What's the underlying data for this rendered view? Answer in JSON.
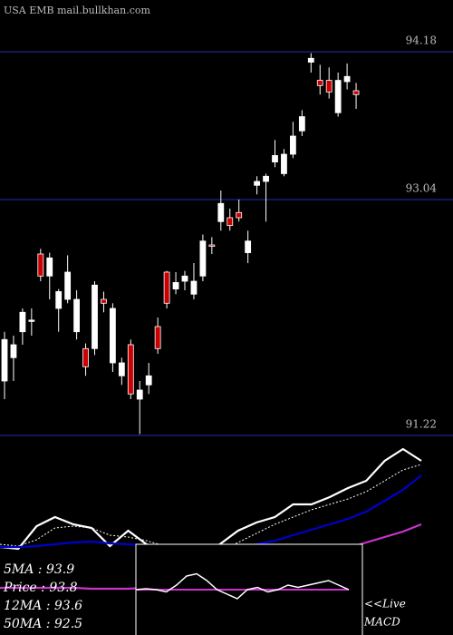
{
  "chart_data": [
    {
      "type": "candlestick",
      "title": "USA EMB mail.bullkhan.com",
      "up_color": "#ffffff",
      "down_color": "#cc0000",
      "grid_color": "#1c1c78",
      "ylim": [
        91.22,
        94.58
      ],
      "yticks": [
        94.18,
        93.04,
        91.22
      ],
      "open": [
        91.64,
        91.82,
        92.02,
        92.1,
        92.62,
        92.45,
        92.2,
        92.27,
        92.02,
        91.89,
        91.89,
        92.27,
        91.78,
        91.68,
        91.92,
        91.5,
        91.61,
        92.06,
        92.48,
        92.35,
        92.41,
        92.31,
        92.45,
        92.69,
        92.87,
        92.9,
        92.94,
        92.63,
        93.15,
        93.18,
        93.33,
        93.24,
        93.39,
        93.57,
        94.1,
        93.96,
        93.96,
        93.71,
        93.95,
        93.88
      ],
      "high": [
        92.02,
        91.99,
        92.2,
        92.2,
        92.66,
        92.63,
        92.35,
        92.61,
        92.34,
        91.93,
        92.41,
        92.33,
        92.24,
        91.82,
        91.96,
        91.64,
        91.78,
        92.13,
        92.49,
        92.48,
        92.49,
        92.55,
        92.77,
        92.75,
        93.11,
        92.97,
        93.04,
        92.8,
        93.22,
        93.24,
        93.5,
        93.43,
        93.64,
        93.73,
        94.17,
        94.08,
        94.06,
        94.02,
        94.09,
        93.94
      ],
      "low": [
        91.5,
        91.64,
        91.92,
        91.99,
        92.41,
        92.27,
        92.02,
        92.24,
        91.96,
        91.68,
        91.84,
        92.17,
        91.71,
        91.61,
        91.5,
        91.23,
        91.54,
        91.85,
        92.2,
        92.31,
        92.34,
        92.27,
        92.41,
        92.62,
        92.8,
        92.8,
        92.87,
        92.55,
        93.08,
        92.87,
        93.29,
        93.22,
        93.36,
        93.53,
        94.02,
        93.85,
        93.82,
        93.68,
        93.89,
        93.74
      ],
      "close": [
        91.96,
        91.92,
        92.17,
        92.11,
        92.45,
        92.59,
        92.33,
        92.48,
        92.27,
        91.75,
        92.38,
        92.24,
        92.2,
        91.78,
        91.54,
        91.57,
        91.68,
        91.89,
        92.24,
        92.4,
        92.45,
        92.41,
        92.72,
        92.68,
        93.01,
        92.84,
        92.9,
        92.72,
        93.18,
        93.22,
        93.38,
        93.39,
        93.53,
        93.68,
        94.13,
        93.92,
        93.87,
        93.96,
        93.99,
        93.85
      ]
    },
    {
      "type": "line",
      "ylim": [
        0,
        220
      ],
      "series": [
        {
          "name": "5MA : 93.9",
          "color": "#ffffff",
          "dashed": true,
          "values": [
            100,
            98,
            105,
            118,
            120,
            118,
            110,
            108,
            104,
            98,
            92,
            88,
            92,
            102,
            112,
            122,
            130,
            138,
            144,
            150,
            158,
            170,
            182,
            188
          ]
        },
        {
          "name": "Price : 93.8",
          "color": "#ffffff",
          "dashed": false,
          "values": [
            97,
            95,
            120,
            130,
            122,
            118,
            98,
            115,
            100,
            93,
            86,
            88,
            100,
            115,
            124,
            130,
            144,
            144,
            152,
            162,
            170,
            192,
            205,
            192
          ]
        },
        {
          "name": "12MA : 93.6",
          "color": "#0000cc",
          "dashed": false,
          "values": [
            97,
            97,
            98,
            100,
            102,
            103,
            101,
            100,
            99,
            97,
            95,
            93,
            93,
            96,
            100,
            104,
            110,
            116,
            122,
            128,
            136,
            148,
            160,
            176
          ]
        },
        {
          "name": "50MA : 92.5",
          "color": "#cc33cc",
          "dashed": false,
          "values": [
            52,
            52,
            52,
            52,
            52,
            51,
            51,
            51,
            52,
            53,
            55,
            58,
            62,
            66,
            70,
            74,
            78,
            84,
            90,
            96,
            102,
            108,
            114,
            122
          ]
        }
      ]
    },
    {
      "type": "macd",
      "title": "MACD",
      "live_label": "<<Live",
      "ylim": [
        -1,
        1
      ],
      "series": [
        {
          "color": "#ffffff",
          "values": [
            0,
            0.02,
            0,
            -0.05,
            0.1,
            0.3,
            0.35,
            0.2,
            0,
            -0.1,
            -0.2,
            0,
            0.05,
            -0.05,
            0,
            0.1,
            0.05,
            0.1,
            0.15,
            0.2,
            0.1,
            0
          ]
        },
        {
          "color": "#cc33cc",
          "values": [
            0,
            0,
            0,
            0,
            0,
            0,
            0,
            0,
            0,
            0,
            0,
            0,
            0,
            0,
            0,
            0,
            0,
            0,
            0,
            0,
            0,
            0
          ]
        }
      ]
    }
  ]
}
